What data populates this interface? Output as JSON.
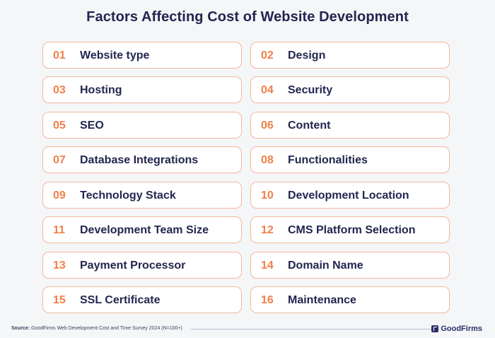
{
  "title": "Factors Affecting Cost of Website Development",
  "factors": [
    {
      "num": "01",
      "label": "Website type"
    },
    {
      "num": "02",
      "label": "Design"
    },
    {
      "num": "03",
      "label": "Hosting"
    },
    {
      "num": "04",
      "label": "Security"
    },
    {
      "num": "05",
      "label": "SEO"
    },
    {
      "num": "06",
      "label": "Content"
    },
    {
      "num": "07",
      "label": "Database Integrations"
    },
    {
      "num": "08",
      "label": "Functionalities"
    },
    {
      "num": "09",
      "label": "Technology Stack"
    },
    {
      "num": "10",
      "label": "Development Location"
    },
    {
      "num": "11",
      "label": "Development Team Size"
    },
    {
      "num": "12",
      "label": "CMS Platform Selection"
    },
    {
      "num": "13",
      "label": "Payment Processor"
    },
    {
      "num": "14",
      "label": "Domain Name"
    },
    {
      "num": "15",
      "label": "SSL Certificate"
    },
    {
      "num": "16",
      "label": "Maintenance"
    }
  ],
  "footer": {
    "source_label": "Source:",
    "source_text": " GoodFirms Web Development Cost and Time Survey 2024 (N=100+)",
    "brand": "GoodFirms",
    "brand_icon": "goodfirms-logo-icon"
  },
  "colors": {
    "title": "#23264f",
    "number": "#f0804a",
    "card_border": "#f3b79d",
    "background": "#f5f6f8"
  }
}
